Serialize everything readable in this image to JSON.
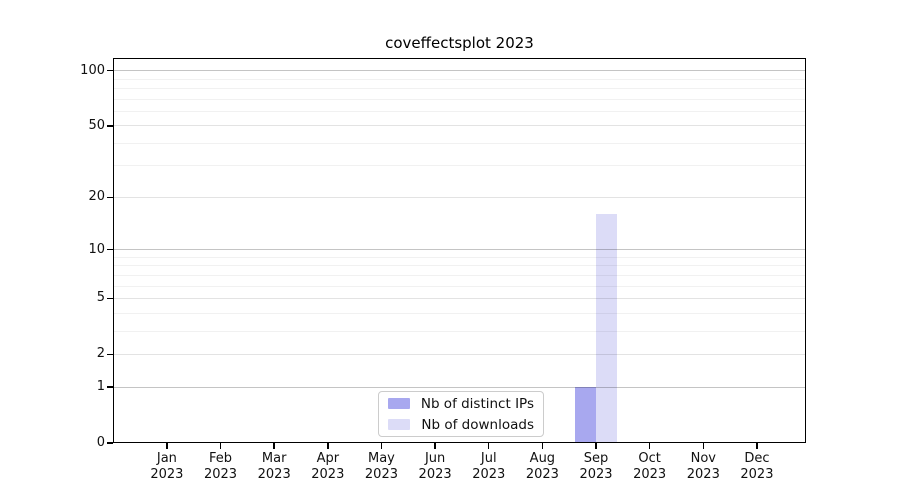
{
  "page": {
    "background": "#ffffff"
  },
  "chart_data": {
    "type": "bar",
    "title": "coveffectsplot 2023",
    "xlabel": "",
    "ylabel": "",
    "categories": [
      "Jan",
      "Feb",
      "Mar",
      "Apr",
      "May",
      "Jun",
      "Jul",
      "Aug",
      "Sep",
      "Oct",
      "Nov",
      "Dec"
    ],
    "x_tick_year": "2023",
    "series": [
      {
        "name": "Nb of distinct IPs",
        "color": "#a8a8ef",
        "values": [
          0,
          0,
          0,
          0,
          0,
          0,
          0,
          0,
          1,
          0,
          0,
          0
        ]
      },
      {
        "name": "Nb of downloads",
        "color": "#dcdcf7",
        "values": [
          0,
          0,
          0,
          0,
          0,
          0,
          0,
          0,
          16,
          0,
          0,
          0
        ]
      }
    ],
    "yscale": "log1p",
    "ylim": [
      0,
      117
    ],
    "yticks": [
      0,
      1,
      2,
      5,
      10,
      20,
      50,
      100
    ],
    "ygrid_strong": [
      1,
      10,
      100
    ],
    "ygrid_light": [
      2,
      5,
      20,
      50
    ],
    "ygrid_minor": [
      3,
      4,
      6,
      7,
      8,
      9,
      30,
      40,
      60,
      70,
      80,
      90
    ],
    "grid": "horizontal-only",
    "legend_position": "bottom-center"
  }
}
